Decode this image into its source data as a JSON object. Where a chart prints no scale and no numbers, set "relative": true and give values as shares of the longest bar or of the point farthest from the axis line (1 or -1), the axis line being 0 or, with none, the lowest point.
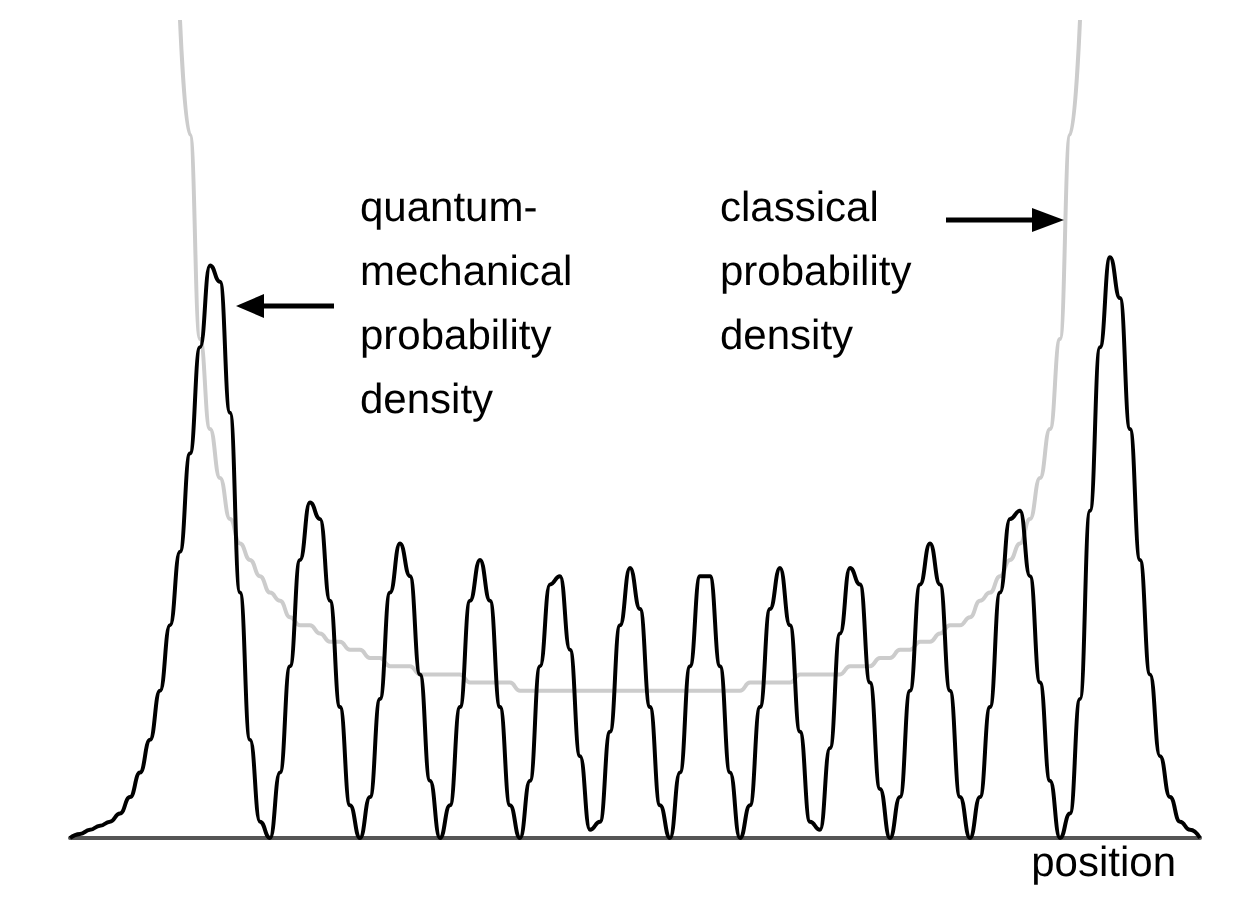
{
  "chart_data": {
    "type": "line",
    "relative": true,
    "xlabel": "position",
    "annotations": [
      "quantum-\nmechanical\nprobability\ndensity",
      "classical\nprobability\ndensity"
    ],
    "categories": [
      null,
      null,
      null,
      null,
      null,
      null,
      null,
      null,
      null,
      null,
      null,
      null,
      null,
      null,
      null,
      null,
      null,
      null,
      null,
      null,
      null,
      null,
      null,
      null,
      null,
      null,
      null,
      null,
      null,
      null,
      null,
      null,
      null,
      null,
      null,
      null,
      null,
      null,
      null,
      null,
      null,
      null,
      null,
      null,
      null,
      null,
      null,
      null,
      null,
      null,
      null,
      null,
      null,
      null,
      null,
      null,
      null,
      null,
      null,
      null,
      null,
      null,
      null,
      null,
      null,
      null,
      null,
      null,
      null,
      null,
      null,
      null,
      null,
      null,
      null,
      null,
      null,
      null,
      null,
      null,
      null,
      null,
      null,
      null,
      null,
      null,
      null,
      null,
      null,
      null,
      null,
      null,
      null,
      null,
      null,
      null,
      null,
      null,
      null,
      null,
      null,
      null,
      null,
      null,
      null,
      null,
      null,
      null,
      null,
      null,
      null,
      null,
      null,
      null
    ],
    "series": [
      {
        "color": "#cccccc",
        "values": [
          null,
          null,
          null,
          null,
          null,
          null,
          null,
          null,
          null,
          null,
          null,
          1,
          0.86,
          0.61,
          0.5,
          0.44,
          0.39,
          0.36,
          0.34,
          0.32,
          0.3,
          0.29,
          0.27,
          0.26,
          0.26,
          0.25,
          0.24,
          0.24,
          0.23,
          0.23,
          0.22,
          0.22,
          0.21,
          0.21,
          0.21,
          0.2,
          0.2,
          0.2,
          0.2,
          0.2,
          0.19,
          0.19,
          0.19,
          0.19,
          0.19,
          0.18,
          0.18,
          0.18,
          0.18,
          0.18,
          0.18,
          0.18,
          0.18,
          0.18,
          0.18,
          0.18,
          0.18,
          0.18,
          0.18,
          0.18,
          0.18,
          0.18,
          0.18,
          0.18,
          0.18,
          0.18,
          0.18,
          0.18,
          0.19,
          0.19,
          0.19,
          0.19,
          0.19,
          0.2,
          0.2,
          0.2,
          0.2,
          0.2,
          0.21,
          0.21,
          0.21,
          0.22,
          0.22,
          0.23,
          0.23,
          0.24,
          0.24,
          0.25,
          0.26,
          0.26,
          0.27,
          0.29,
          0.3,
          0.32,
          0.34,
          0.36,
          0.39,
          0.44,
          0.5,
          0.61,
          0.86,
          1,
          null,
          null,
          null,
          null,
          null,
          null,
          null,
          null,
          null,
          null,
          null,
          null
        ]
      },
      {
        "color": "#000000",
        "values": [
          0,
          0.005,
          0.01,
          0.015,
          0.02,
          0.03,
          0.05,
          0.08,
          0.12,
          0.18,
          0.26,
          0.35,
          0.47,
          0.6,
          0.7,
          0.68,
          0.52,
          0.3,
          0.12,
          0.02,
          0,
          0.08,
          0.21,
          0.34,
          0.41,
          0.39,
          0.29,
          0.16,
          0.04,
          0,
          0.05,
          0.17,
          0.3,
          0.36,
          0.32,
          0.2,
          0.07,
          0,
          0.04,
          0.16,
          0.29,
          0.34,
          0.29,
          0.16,
          0.04,
          0,
          0.07,
          0.21,
          0.31,
          0.32,
          0.23,
          0.1,
          0.01,
          0.02,
          0.13,
          0.26,
          0.33,
          0.28,
          0.16,
          0.04,
          0,
          0.08,
          0.21,
          0.32,
          0.32,
          0.21,
          0.08,
          0,
          0.04,
          0.16,
          0.28,
          0.33,
          0.26,
          0.13,
          0.02,
          0.01,
          0.11,
          0.25,
          0.33,
          0.31,
          0.19,
          0.06,
          0,
          0.05,
          0.18,
          0.31,
          0.36,
          0.31,
          0.18,
          0.05,
          0,
          0.05,
          0.16,
          0.3,
          0.39,
          0.4,
          0.32,
          0.19,
          0.07,
          0,
          0.03,
          0.17,
          0.4,
          0.6,
          0.71,
          0.66,
          0.5,
          0.34,
          0.2,
          0.1,
          0.05,
          0.02,
          0.01,
          0
        ]
      }
    ]
  }
}
